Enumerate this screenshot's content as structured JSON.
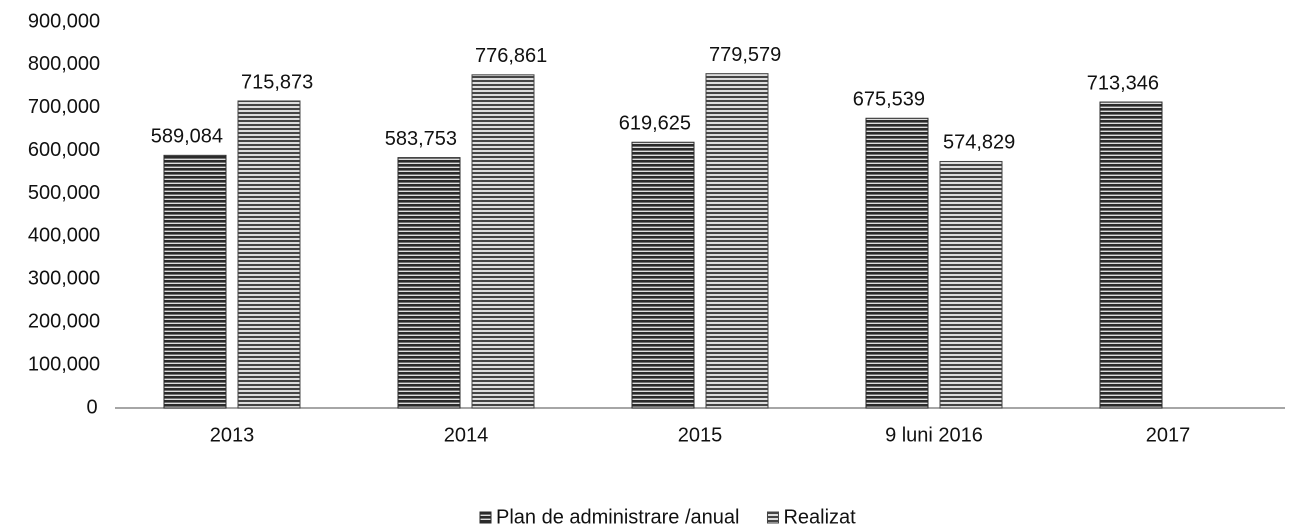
{
  "chart_data": {
    "type": "bar",
    "categories": [
      "2013",
      "2014",
      "2015",
      "9 luni 2016",
      "2017"
    ],
    "series": [
      {
        "name": "Plan de administrare /anual",
        "color": "#2a2a2a",
        "values": [
          589084,
          583753,
          619625,
          675539,
          713346
        ],
        "value_labels": [
          "589,084",
          "583,753",
          "619,625",
          "675,539",
          "713,346"
        ]
      },
      {
        "name": "Realizat",
        "color": "#444444",
        "values": [
          715873,
          776861,
          779579,
          574829,
          null
        ],
        "value_labels": [
          "715,873",
          "776,861",
          "779,579",
          "574,829",
          null
        ]
      }
    ],
    "ylim": [
      0,
      900000
    ],
    "yticks": [
      0,
      {
        "value": 100000,
        "label": "100,000"
      },
      {
        "value": 200000,
        "label": "200,000"
      },
      {
        "value": 300000,
        "label": "300,000"
      },
      {
        "value": 400000,
        "label": "400,000"
      },
      {
        "value": 500000,
        "label": "500,000"
      },
      {
        "value": 600000,
        "label": "600,000"
      },
      {
        "value": 700000,
        "label": "700,000"
      },
      {
        "value": 800000,
        "label": "800,000"
      },
      {
        "value": 900000,
        "label": "900,000"
      }
    ],
    "legend": "bottom",
    "grid": false
  }
}
